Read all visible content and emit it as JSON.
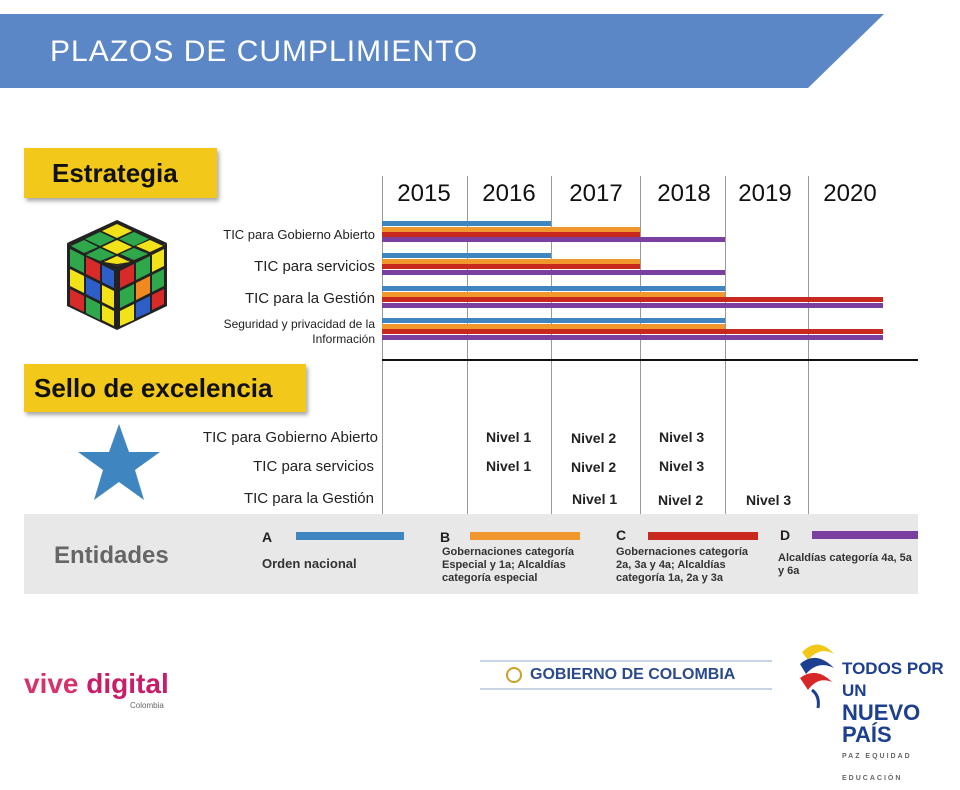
{
  "header": {
    "title": "PLAZOS DE CUMPLIMIENTO"
  },
  "estrategia": {
    "badge": "Estrategia",
    "years": [
      "2015",
      "2016",
      "2017",
      "2018",
      "2019",
      "2020"
    ],
    "rows": [
      {
        "label": "TIC para Gobierno Abierto"
      },
      {
        "label": "TIC para servicios"
      },
      {
        "label": "TIC para la Gestión"
      },
      {
        "label_line1": "Seguridad y privacidad de la",
        "label_line2": "Información"
      }
    ]
  },
  "sello": {
    "badge": "Sello de excelencia",
    "rows": [
      {
        "label": "TIC para Gobierno Abierto",
        "levels": [
          "Nivel 1",
          "Nivel 2",
          "Nivel 3"
        ]
      },
      {
        "label": "TIC para servicios",
        "levels": [
          "Nivel 1",
          "Nivel 2",
          "Nivel 3"
        ]
      },
      {
        "label": "TIC para la Gestión",
        "levels": [
          "Nivel 1",
          "Nivel 2",
          "Nivel 3"
        ]
      }
    ]
  },
  "entidades": {
    "title": "Entidades",
    "items": [
      {
        "letter": "A",
        "desc": "Orden nacional",
        "color": "#3f86c0"
      },
      {
        "letter": "B",
        "desc": "Gobernaciones categoría Especial y 1a; Alcaldías categoría especial",
        "color": "#f0982e"
      },
      {
        "letter": "C",
        "desc": "Gobernaciones categoría 2a, 3a y 4a; Alcaldías categoría 1a, 2a y 3a",
        "color": "#c8281e"
      },
      {
        "letter": "D",
        "desc": "Alcaldías categoría 4a, 5a y 6a",
        "color": "#7b3fa0"
      }
    ]
  },
  "footer": {
    "vive": "vive",
    "digital": "digital",
    "vive_sub": "Colombia",
    "gobierno": "GOBIERNO DE COLOMBIA",
    "tpu_line1": "TODOS POR UN",
    "tpu_line2": "NUEVO PAÍS",
    "tpu_line3": "PAZ  EQUIDAD  EDUCACIÓN"
  }
}
